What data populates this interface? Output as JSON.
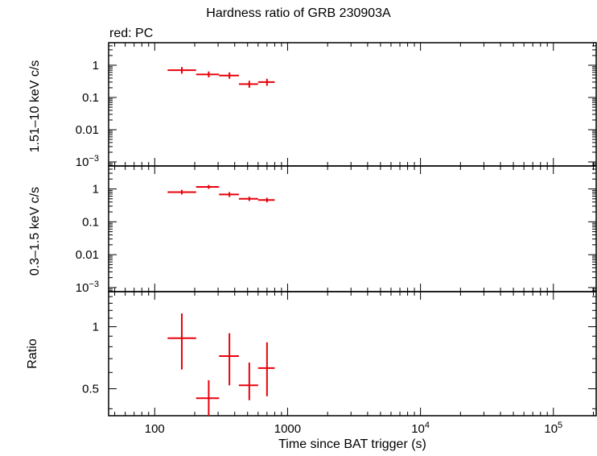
{
  "page": {
    "title": "Hardness ratio of GRB 230903A",
    "note": "red: PC",
    "xlabel": "Time since BAT trigger (s)"
  },
  "colors": {
    "series": "#e8000b",
    "axes": "#000000"
  },
  "chart_data": [
    {
      "type": "scatter",
      "panel": "hard-band",
      "ylabel": "1.51–10 keV c/s",
      "xscale": "log",
      "yscale": "log",
      "xlim": [
        45,
        210000
      ],
      "ylim": [
        0.00075,
        5
      ],
      "x_ticks": [
        {
          "value": 100,
          "label": "100"
        },
        {
          "value": 1000,
          "label": "1000"
        },
        {
          "value": 10000,
          "label": "10",
          "exp": "4"
        },
        {
          "value": 100000,
          "label": "10",
          "exp": "5"
        }
      ],
      "y_ticks": [
        {
          "value": 1,
          "label": "1"
        },
        {
          "value": 0.1,
          "label": "0.1"
        },
        {
          "value": 0.01,
          "label": "0.01"
        },
        {
          "value": 0.001,
          "label": "10",
          "exp": "−3"
        }
      ],
      "series": [
        {
          "points": [
            {
              "x": 160,
              "xerr": [
                125,
                205
              ],
              "y": 0.7,
              "yerr": [
                0.55,
                0.88
              ]
            },
            {
              "x": 255,
              "xerr": [
                205,
                305
              ],
              "y": 0.52,
              "yerr": [
                0.42,
                0.64
              ]
            },
            {
              "x": 365,
              "xerr": [
                305,
                430
              ],
              "y": 0.48,
              "yerr": [
                0.38,
                0.6
              ]
            },
            {
              "x": 515,
              "xerr": [
                430,
                600
              ],
              "y": 0.26,
              "yerr": [
                0.2,
                0.33
              ]
            },
            {
              "x": 700,
              "xerr": [
                600,
                800
              ],
              "y": 0.3,
              "yerr": [
                0.23,
                0.38
              ]
            }
          ]
        }
      ]
    },
    {
      "type": "scatter",
      "panel": "soft-band",
      "ylabel": "0.3–1.5 keV c/s",
      "xscale": "log",
      "yscale": "log",
      "xlim": [
        45,
        210000
      ],
      "ylim": [
        0.00075,
        5
      ],
      "y_ticks": [
        {
          "value": 1,
          "label": "1"
        },
        {
          "value": 0.1,
          "label": "0.1"
        },
        {
          "value": 0.01,
          "label": "0.01"
        },
        {
          "value": 0.001,
          "label": "10",
          "exp": "−3"
        }
      ],
      "series": [
        {
          "points": [
            {
              "x": 160,
              "xerr": [
                125,
                205
              ],
              "y": 0.8,
              "yerr": [
                0.68,
                0.94
              ]
            },
            {
              "x": 255,
              "xerr": [
                205,
                305
              ],
              "y": 1.15,
              "yerr": [
                1.0,
                1.32
              ]
            },
            {
              "x": 365,
              "xerr": [
                305,
                430
              ],
              "y": 0.68,
              "yerr": [
                0.57,
                0.8
              ]
            },
            {
              "x": 515,
              "xerr": [
                430,
                600
              ],
              "y": 0.5,
              "yerr": [
                0.43,
                0.58
              ]
            },
            {
              "x": 700,
              "xerr": [
                600,
                800
              ],
              "y": 0.46,
              "yerr": [
                0.39,
                0.54
              ]
            }
          ]
        }
      ]
    },
    {
      "type": "scatter",
      "panel": "ratio",
      "ylabel": "Ratio",
      "xscale": "log",
      "yscale": "log",
      "xlim": [
        45,
        210000
      ],
      "ylim": [
        0.37,
        1.48
      ],
      "y_ticks": [
        {
          "value": 1,
          "label": "1"
        },
        {
          "value": 0.5,
          "label": "0.5"
        }
      ],
      "series": [
        {
          "points": [
            {
              "x": 160,
              "xerr": [
                125,
                205
              ],
              "y": 0.88,
              "yerr": [
                0.62,
                1.16
              ]
            },
            {
              "x": 255,
              "xerr": [
                205,
                305
              ],
              "y": 0.45,
              "yerr": [
                0.37,
                0.55
              ]
            },
            {
              "x": 365,
              "xerr": [
                305,
                430
              ],
              "y": 0.72,
              "yerr": [
                0.52,
                0.93
              ]
            },
            {
              "x": 515,
              "xerr": [
                430,
                600
              ],
              "y": 0.52,
              "yerr": [
                0.44,
                0.67
              ]
            },
            {
              "x": 700,
              "xerr": [
                600,
                800
              ],
              "y": 0.63,
              "yerr": [
                0.46,
                0.84
              ]
            }
          ]
        }
      ]
    }
  ]
}
